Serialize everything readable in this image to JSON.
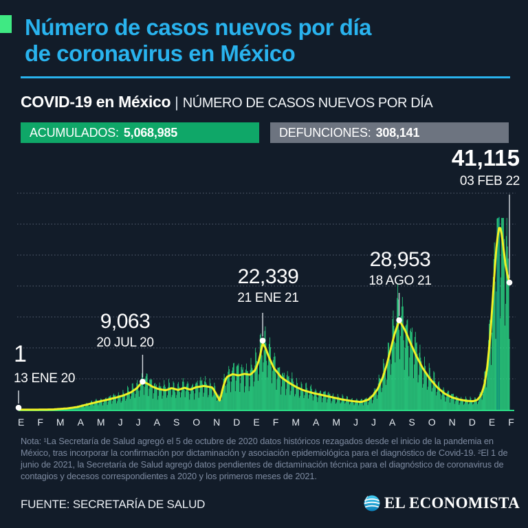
{
  "header": {
    "title_line1": "Número de casos nuevos por día",
    "title_line2": "de coronavirus en México",
    "subtitle_bold": "COVID-19 en México",
    "subtitle_sep": "|",
    "subtitle_rest": "NÚMERO DE CASOS NUEVOS POR DÍA"
  },
  "badges": {
    "accumulated_label": "ACUMULADOS:",
    "accumulated_value": "5,068,985",
    "deaths_label": "DEFUNCIONES:",
    "deaths_value": "308,141"
  },
  "colors": {
    "background": "#121c29",
    "title_cyan": "#29b3ee",
    "accent_green": "#3fe983",
    "badge_green": "#0fa768",
    "badge_gray": "#6d7480",
    "bar_green": "#2bdd86",
    "bar_teal": "#0e8a7b",
    "avg_line_yellow": "#f0f226",
    "gridline": "#93a0b4",
    "leader_white": "#d9dee4",
    "note_gray": "#7e8ba1"
  },
  "chart_data": {
    "type": "bar",
    "title": "Número de casos nuevos por día de coronavirus en México",
    "xlabel": "",
    "ylabel": "casos nuevos por día",
    "ylim": [
      0,
      70000
    ],
    "gridline_every": 10000,
    "grid": "dotted-horizontal",
    "x_axis_months": [
      "E",
      "F",
      "M",
      "A",
      "M",
      "J",
      "J",
      "A",
      "S",
      "O",
      "N",
      "D",
      "E",
      "F",
      "M",
      "A",
      "M",
      "J",
      "J",
      "A",
      "S",
      "O",
      "N",
      "D",
      "E",
      "F"
    ],
    "x_range_dates": [
      "13 ENE 20",
      "03 FEB 22"
    ],
    "n_days": 752,
    "bar_cap_thousands": 62,
    "weekly_pattern": [
      1.28,
      1.18,
      0.95,
      0.55,
      0.75,
      1.1,
      1.32
    ],
    "series": [
      {
        "name": "casos nuevos diarios",
        "render": "bars",
        "color": "#2bdd86"
      },
      {
        "name": "promedio móvil",
        "render": "line",
        "color": "#f0f226"
      }
    ],
    "avg_line_points": [
      [
        0,
        0.02
      ],
      [
        0.04,
        0.03
      ],
      [
        0.07,
        0.1
      ],
      [
        0.1,
        0.45
      ],
      [
        0.12,
        0.9
      ],
      [
        0.14,
        1.7
      ],
      [
        0.16,
        2.5
      ],
      [
        0.18,
        3.2
      ],
      [
        0.2,
        4.0
      ],
      [
        0.215,
        4.7
      ],
      [
        0.23,
        5.7
      ],
      [
        0.241,
        7.0
      ],
      [
        0.2527,
        9.06
      ],
      [
        0.262,
        8.5
      ],
      [
        0.272,
        7.5
      ],
      [
        0.285,
        6.7
      ],
      [
        0.3,
        6.3
      ],
      [
        0.312,
        7.0
      ],
      [
        0.325,
        6.4
      ],
      [
        0.338,
        7.1
      ],
      [
        0.35,
        6.5
      ],
      [
        0.362,
        7.3
      ],
      [
        0.378,
        7.7
      ],
      [
        0.395,
        7.2
      ],
      [
        0.403,
        5.0
      ],
      [
        0.41,
        2.9
      ],
      [
        0.417,
        7.5
      ],
      [
        0.424,
        10.6
      ],
      [
        0.436,
        11.5
      ],
      [
        0.448,
        11.1
      ],
      [
        0.46,
        11.6
      ],
      [
        0.472,
        11.3
      ],
      [
        0.482,
        12.8
      ],
      [
        0.49,
        16.0
      ],
      [
        0.4973,
        21.5
      ],
      [
        0.503,
        20.0
      ],
      [
        0.51,
        17.0
      ],
      [
        0.52,
        13.5
      ],
      [
        0.535,
        10.5
      ],
      [
        0.55,
        8.8
      ],
      [
        0.565,
        7.4
      ],
      [
        0.58,
        6.3
      ],
      [
        0.6,
        5.4
      ],
      [
        0.62,
        4.7
      ],
      [
        0.64,
        4.0
      ],
      [
        0.66,
        3.3
      ],
      [
        0.68,
        2.8
      ],
      [
        0.698,
        2.5
      ],
      [
        0.712,
        3.2
      ],
      [
        0.722,
        4.6
      ],
      [
        0.732,
        6.8
      ],
      [
        0.742,
        10.5
      ],
      [
        0.75,
        14.5
      ],
      [
        0.758,
        19.5
      ],
      [
        0.766,
        24.5
      ],
      [
        0.772,
        27.3
      ],
      [
        0.7753,
        28.6
      ],
      [
        0.78,
        27.8
      ],
      [
        0.788,
        25.5
      ],
      [
        0.797,
        22.0
      ],
      [
        0.81,
        17.5
      ],
      [
        0.823,
        13.5
      ],
      [
        0.838,
        10.0
      ],
      [
        0.853,
        7.2
      ],
      [
        0.868,
        5.2
      ],
      [
        0.883,
        4.0
      ],
      [
        0.898,
        3.3
      ],
      [
        0.912,
        2.9
      ],
      [
        0.925,
        2.75
      ],
      [
        0.934,
        3.1
      ],
      [
        0.942,
        4.6
      ],
      [
        0.949,
        8.0
      ],
      [
        0.955,
        14.0
      ],
      [
        0.96,
        22.0
      ],
      [
        0.9645,
        32.0
      ],
      [
        0.969,
        43.0
      ],
      [
        0.9735,
        52.5
      ],
      [
        0.978,
        58.5
      ],
      [
        0.9805,
        59.3
      ],
      [
        0.984,
        57.0
      ],
      [
        0.988,
        52.0
      ],
      [
        0.992,
        47.0
      ],
      [
        0.996,
        43.5
      ],
      [
        1.0,
        41.1
      ]
    ],
    "accent_bars": [
      {
        "t": 0.975,
        "v_thousands": 59.0
      },
      {
        "t": 0.979,
        "v_thousands": 62.3
      }
    ],
    "annotations": [
      {
        "text": "1",
        "date": "13 ENE 20",
        "t": 0.0,
        "v_thousands": 0.001,
        "leader_top": 568
      },
      {
        "text": "9,063",
        "date": "20 JUL 20",
        "t": 0.2527,
        "v_thousands": 9.063,
        "leader_top": 516
      },
      {
        "text": "22,339",
        "date": "21 ENE 21",
        "t": 0.4973,
        "v_thousands": 22.339,
        "leader_top": 455
      },
      {
        "text": "28,953",
        "date": "18 AGO 21",
        "t": 0.7753,
        "v_thousands": 28.953,
        "leader_top": 426
      },
      {
        "text": "41,115",
        "date": "03 FEB 22",
        "t": 1.0,
        "v_thousands": 41.115,
        "leader_top": 283,
        "emphasis": true
      }
    ]
  },
  "note": {
    "line1": "Nota: ¹La Secretaría de Salud agregó el 5 de octubre de 2020 datos históricos rezagados desde el inicio de la pandemia en México, tras incorporar la confirmación por dictaminación y asociación epidemiológica para el diagnóstico de Covid-19. ",
    "line2": "²El 1 de junio de 2021, la Secretaría de Salud agregó datos pendientes de dictaminación técnica para el diagnóstico de coronavirus de contagios y decesos correspondientes a 2020 y los primeros meses de 2021."
  },
  "footer": {
    "source": "FUENTE: SECRETARÍA DE SALUD",
    "brand": "EL ECONOMISTA"
  }
}
